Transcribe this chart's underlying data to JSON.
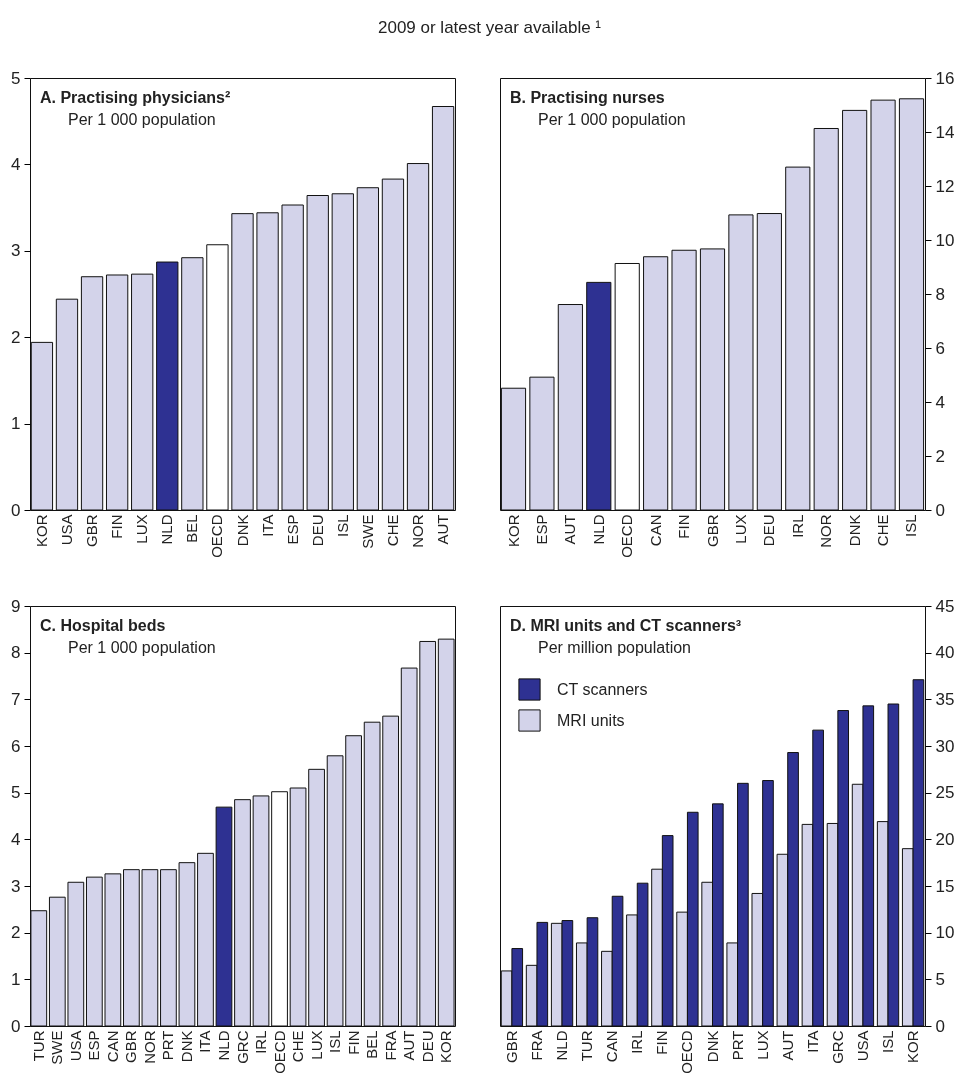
{
  "chart_data": [
    {
      "type": "bar",
      "title": "A. Practising physicians²",
      "subtitle": "Per 1 000 population",
      "annotations": [
        "2009 or latest year available ¹"
      ],
      "categories": [
        "KOR",
        "USA",
        "GBR",
        "FIN",
        "LUX",
        "NLD",
        "BEL",
        "OECD",
        "DNK",
        "ITA",
        "ESP",
        "DEU",
        "ISL",
        "SWE",
        "CHE",
        "NOR",
        "AUT"
      ],
      "values": [
        1.94,
        2.44,
        2.7,
        2.72,
        2.73,
        2.87,
        2.92,
        3.07,
        3.43,
        3.44,
        3.53,
        3.64,
        3.66,
        3.73,
        3.83,
        4.01,
        4.67
      ],
      "colors": [
        "#d3d3ea",
        "#d3d3ea",
        "#d3d3ea",
        "#d3d3ea",
        "#d3d3ea",
        "#2e3192",
        "#d3d3ea",
        "#ffffff",
        "#d3d3ea",
        "#d3d3ea",
        "#d3d3ea",
        "#d3d3ea",
        "#d3d3ea",
        "#d3d3ea",
        "#d3d3ea",
        "#d3d3ea",
        "#d3d3ea"
      ],
      "ylim": [
        0,
        5
      ],
      "yticks": [
        0,
        1,
        2,
        3,
        4,
        5
      ]
    },
    {
      "type": "bar",
      "title": "B. Practising  nurses",
      "subtitle": "Per 1 000 population",
      "categories": [
        "KOR",
        "ESP",
        "AUT",
        "NLD",
        "OECD",
        "CAN",
        "FIN",
        "GBR",
        "LUX",
        "DEU",
        "IRL",
        "NOR",
        "DNK",
        "CHE",
        "ISL"
      ],
      "values": [
        4.51,
        4.92,
        7.61,
        8.43,
        9.13,
        9.38,
        9.62,
        9.67,
        10.93,
        10.98,
        12.7,
        14.13,
        14.8,
        15.18,
        15.23
      ],
      "colors": [
        "#d3d3ea",
        "#d3d3ea",
        "#d3d3ea",
        "#2e3192",
        "#ffffff",
        "#d3d3ea",
        "#d3d3ea",
        "#d3d3ea",
        "#d3d3ea",
        "#d3d3ea",
        "#d3d3ea",
        "#d3d3ea",
        "#d3d3ea",
        "#d3d3ea",
        "#d3d3ea"
      ],
      "ylim": [
        0,
        16
      ],
      "yticks": [
        0,
        2,
        4,
        6,
        8,
        10,
        12,
        14,
        16
      ]
    },
    {
      "type": "bar",
      "title": "C. Hospital beds",
      "subtitle": "Per 1 000 population",
      "categories": [
        "TUR",
        "SWE",
        "USA",
        "ESP",
        "CAN",
        "GBR",
        "NOR",
        "PRT",
        "DNK",
        "ITA",
        "NLD",
        "GRC",
        "IRL",
        "OECD",
        "CHE",
        "LUX",
        "ISL",
        "FIN",
        "BEL",
        "FRA",
        "AUT",
        "DEU",
        "KOR"
      ],
      "values": [
        2.47,
        2.76,
        3.08,
        3.19,
        3.26,
        3.35,
        3.35,
        3.35,
        3.5,
        3.7,
        4.69,
        4.85,
        4.93,
        5.02,
        5.1,
        5.5,
        5.79,
        6.22,
        6.51,
        6.64,
        7.67,
        8.24,
        8.29
      ],
      "colors": [
        "#d3d3ea",
        "#d3d3ea",
        "#d3d3ea",
        "#d3d3ea",
        "#d3d3ea",
        "#d3d3ea",
        "#d3d3ea",
        "#d3d3ea",
        "#d3d3ea",
        "#d3d3ea",
        "#2e3192",
        "#d3d3ea",
        "#d3d3ea",
        "#ffffff",
        "#d3d3ea",
        "#d3d3ea",
        "#d3d3ea",
        "#d3d3ea",
        "#d3d3ea",
        "#d3d3ea",
        "#d3d3ea",
        "#d3d3ea",
        "#d3d3ea"
      ],
      "ylim": [
        0,
        9
      ],
      "yticks": [
        0,
        1,
        2,
        3,
        4,
        5,
        6,
        7,
        8,
        9
      ]
    },
    {
      "type": "bar",
      "title": "D. MRI units and CT scanners³",
      "subtitle": "Per million population",
      "categories": [
        "GBR",
        "FRA",
        "NLD",
        "TUR",
        "CAN",
        "IRL",
        "FIN",
        "OECD",
        "DNK",
        "PRT",
        "LUX",
        "AUT",
        "ITA",
        "GRC",
        "USA",
        "ISL",
        "KOR"
      ],
      "series": [
        {
          "name": "MRI units",
          "color": "#d3d3ea",
          "values": [
            5.9,
            6.5,
            11.0,
            8.9,
            8.0,
            11.9,
            16.8,
            12.2,
            15.4,
            8.9,
            14.2,
            18.4,
            21.6,
            21.7,
            25.9,
            21.9,
            19.0
          ]
        },
        {
          "name": "CT scanners",
          "color": "#2e3192",
          "values": [
            8.3,
            11.1,
            11.3,
            11.6,
            13.9,
            15.3,
            20.4,
            22.9,
            23.8,
            26.0,
            26.3,
            29.3,
            31.7,
            33.8,
            34.3,
            34.5,
            37.1
          ]
        }
      ],
      "legend": "top left",
      "ylim": [
        0,
        45
      ],
      "yticks": [
        0,
        5,
        10,
        15,
        20,
        25,
        30,
        35,
        40,
        45
      ]
    }
  ]
}
